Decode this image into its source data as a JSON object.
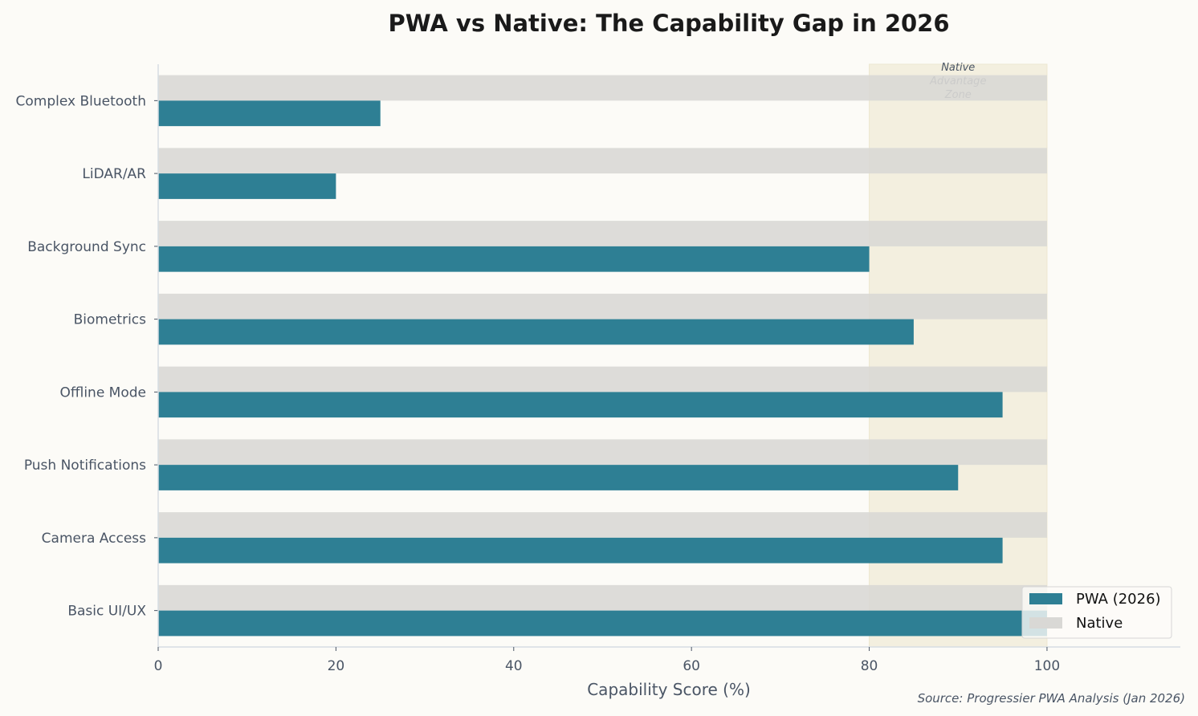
{
  "chart_data": {
    "type": "bar",
    "orientation": "horizontal",
    "title": "PWA vs Native: The Capability Gap in 2026",
    "xlabel": "Capability Score (%)",
    "ylabel": "",
    "xlim": [
      0,
      115
    ],
    "xticks": [
      "0",
      "20",
      "40",
      "60",
      "80",
      "100"
    ],
    "categories": [
      "Basic UI/UX",
      "Camera Access",
      "Push Notifications",
      "Offline Mode",
      "Biometrics",
      "Background Sync",
      "LiDAR/AR",
      "Complex Bluetooth"
    ],
    "series": [
      {
        "name": "PWA (2026)",
        "values": [
          100,
          95,
          90,
          95,
          85,
          80,
          20,
          25
        ],
        "color": "#2e7f94"
      },
      {
        "name": "Native",
        "values": [
          100,
          100,
          100,
          100,
          100,
          100,
          100,
          100
        ],
        "color": "#d9d8d5"
      }
    ],
    "shaded_region": {
      "from": 80,
      "to": 100,
      "label_lines": [
        "Native",
        "Advantage",
        "Zone"
      ],
      "color": "#f3eedd"
    },
    "legend": "bottom-right",
    "grid": false,
    "source": "Source: Progressier PWA Analysis (Jan 2026)"
  }
}
